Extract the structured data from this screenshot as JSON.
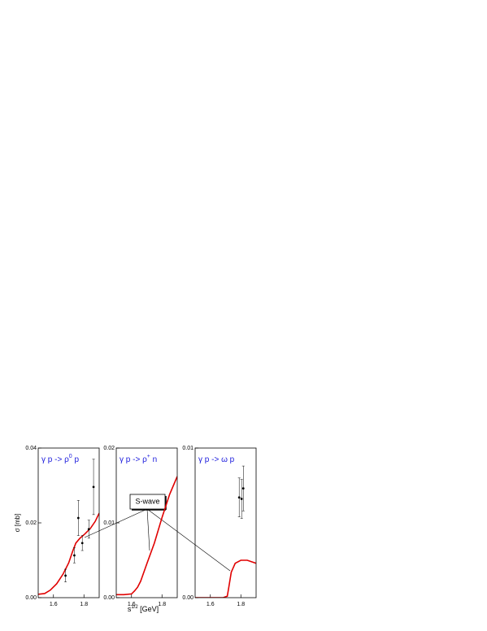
{
  "ylabel": "σ [mb]",
  "xlabel": [
    "s",
    "1/2",
    " [GeV]"
  ],
  "annotation": "S-wave",
  "chart_data": [
    {
      "type": "line",
      "title": [
        "γ p -> ρ",
        "0",
        " p"
      ],
      "xlim": [
        1.5,
        1.9
      ],
      "xticks": [
        1.6,
        1.8
      ],
      "ylim": [
        0,
        0.04
      ],
      "yticks": [
        {
          "value": 0,
          "label": "0.00"
        },
        0.02,
        0.04
      ],
      "series": [
        {
          "color": "#e00000",
          "x": [
            1.5,
            1.542,
            1.579,
            1.621,
            1.663,
            1.7,
            1.726,
            1.747,
            1.774,
            1.805,
            1.842,
            1.874,
            1.9
          ],
          "values": [
            0.0009,
            0.0011,
            0.002,
            0.0037,
            0.0063,
            0.0093,
            0.0124,
            0.0146,
            0.0159,
            0.017,
            0.0185,
            0.0204,
            0.0226
          ]
        }
      ],
      "points": {
        "x": [
          1.679,
          1.737,
          1.763,
          1.789,
          1.832,
          1.863
        ],
        "values": [
          0.0059,
          0.0113,
          0.0213,
          0.0146,
          0.0183,
          0.0296
        ],
        "errors": [
          0.0017,
          0.002,
          0.0047,
          0.002,
          0.0024,
          0.0074
        ]
      }
    },
    {
      "type": "line",
      "title": [
        "γ p -> ρ",
        "+",
        " n"
      ],
      "xlim": [
        1.5,
        1.9
      ],
      "xticks": [
        1.6,
        1.8
      ],
      "ylim": [
        0,
        0.02
      ],
      "yticks": [
        {
          "value": 0,
          "label": "0.00"
        },
        0.01,
        0.02
      ],
      "series": [
        {
          "color": "#e00000",
          "x": [
            1.5,
            1.55,
            1.6,
            1.62,
            1.64,
            1.66,
            1.7,
            1.75,
            1.8,
            1.85,
            1.9
          ],
          "values": [
            0.0004,
            0.0004,
            0.0005,
            0.0009,
            0.0014,
            0.0022,
            0.0045,
            0.0073,
            0.0107,
            0.0138,
            0.0162
          ]
        }
      ]
    },
    {
      "type": "line",
      "title": [
        "γ p -> ω p"
      ],
      "xlim": [
        1.5,
        1.9
      ],
      "xticks": [
        1.6,
        1.8
      ],
      "ylim": [
        0,
        0.01
      ],
      "yticks": [
        {
          "value": 0,
          "label": "0.00"
        },
        0.01
      ],
      "series": [
        {
          "color": "#e00000",
          "x": [
            1.5,
            1.684,
            1.711,
            1.721,
            1.737,
            1.763,
            1.8,
            1.842,
            1.9
          ],
          "values": [
            0,
            0,
            0.0001,
            0.0007,
            0.0017,
            0.0023,
            0.0025,
            0.0025,
            0.0023
          ]
        }
      ],
      "points": {
        "x": [
          1.789,
          1.805,
          1.816
        ],
        "values": [
          0.0067,
          0.0066,
          0.0073
        ],
        "errors": [
          0.0013,
          0.0013,
          0.0015
        ]
      }
    }
  ]
}
